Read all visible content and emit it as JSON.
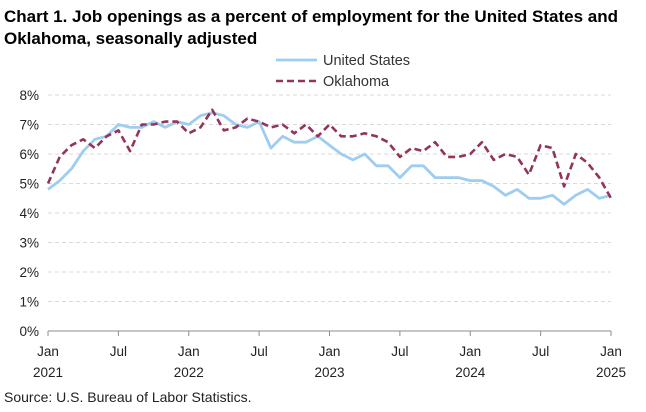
{
  "title": "Chart 1. Job openings as a percent of employment for the United States and Oklahoma, seasonally adjusted",
  "source": "Source: U.S. Bureau of Labor Statistics.",
  "chart_data": {
    "type": "line",
    "title": "Chart 1. Job openings as a percent of employment for the United States and Oklahoma, seasonally adjusted",
    "xlabel": "",
    "ylabel": "",
    "ylim": [
      0,
      8
    ],
    "yticks": [
      "0%",
      "1%",
      "2%",
      "3%",
      "4%",
      "5%",
      "6%",
      "7%",
      "8%"
    ],
    "xticks": [
      {
        "month": "Jan",
        "year": "2021"
      },
      {
        "month": "Jul",
        "year": ""
      },
      {
        "month": "Jan",
        "year": "2022"
      },
      {
        "month": "Jul",
        "year": ""
      },
      {
        "month": "Jan",
        "year": "2023"
      },
      {
        "month": "Jul",
        "year": ""
      },
      {
        "month": "Jan",
        "year": "2024"
      },
      {
        "month": "Jul",
        "year": ""
      },
      {
        "month": "Jan",
        "year": "2025"
      }
    ],
    "grid": true,
    "legend_position": "top-right",
    "x_start": "Jan 2021",
    "x_end": "Jan 2025",
    "series": [
      {
        "name": "United States",
        "color": "#9fcdf0",
        "style": "solid",
        "values": [
          4.8,
          5.1,
          5.5,
          6.1,
          6.5,
          6.6,
          7.0,
          6.9,
          6.9,
          7.1,
          6.9,
          7.1,
          7.0,
          7.3,
          7.4,
          7.3,
          7.0,
          6.9,
          7.1,
          6.2,
          6.6,
          6.4,
          6.4,
          6.6,
          6.3,
          6.0,
          5.8,
          6.0,
          5.6,
          5.6,
          5.2,
          5.6,
          5.6,
          5.2,
          5.2,
          5.2,
          5.1,
          5.1,
          4.9,
          4.6,
          4.8,
          4.5,
          4.5,
          4.6,
          4.3,
          4.6,
          4.8,
          4.5,
          4.6
        ]
      },
      {
        "name": "Oklahoma",
        "color": "#93345d",
        "style": "dashed",
        "values": [
          5.0,
          5.9,
          6.3,
          6.5,
          6.2,
          6.6,
          6.8,
          6.1,
          7.0,
          7.0,
          7.1,
          7.1,
          6.7,
          6.9,
          7.5,
          6.8,
          6.9,
          7.2,
          7.1,
          6.9,
          7.0,
          6.7,
          7.0,
          6.6,
          7.0,
          6.6,
          6.6,
          6.7,
          6.6,
          6.4,
          5.9,
          6.2,
          6.1,
          6.4,
          5.9,
          5.9,
          6.0,
          6.4,
          5.8,
          6.0,
          5.9,
          5.3,
          6.3,
          6.2,
          4.9,
          6.0,
          5.7,
          5.2,
          4.5
        ]
      }
    ]
  }
}
